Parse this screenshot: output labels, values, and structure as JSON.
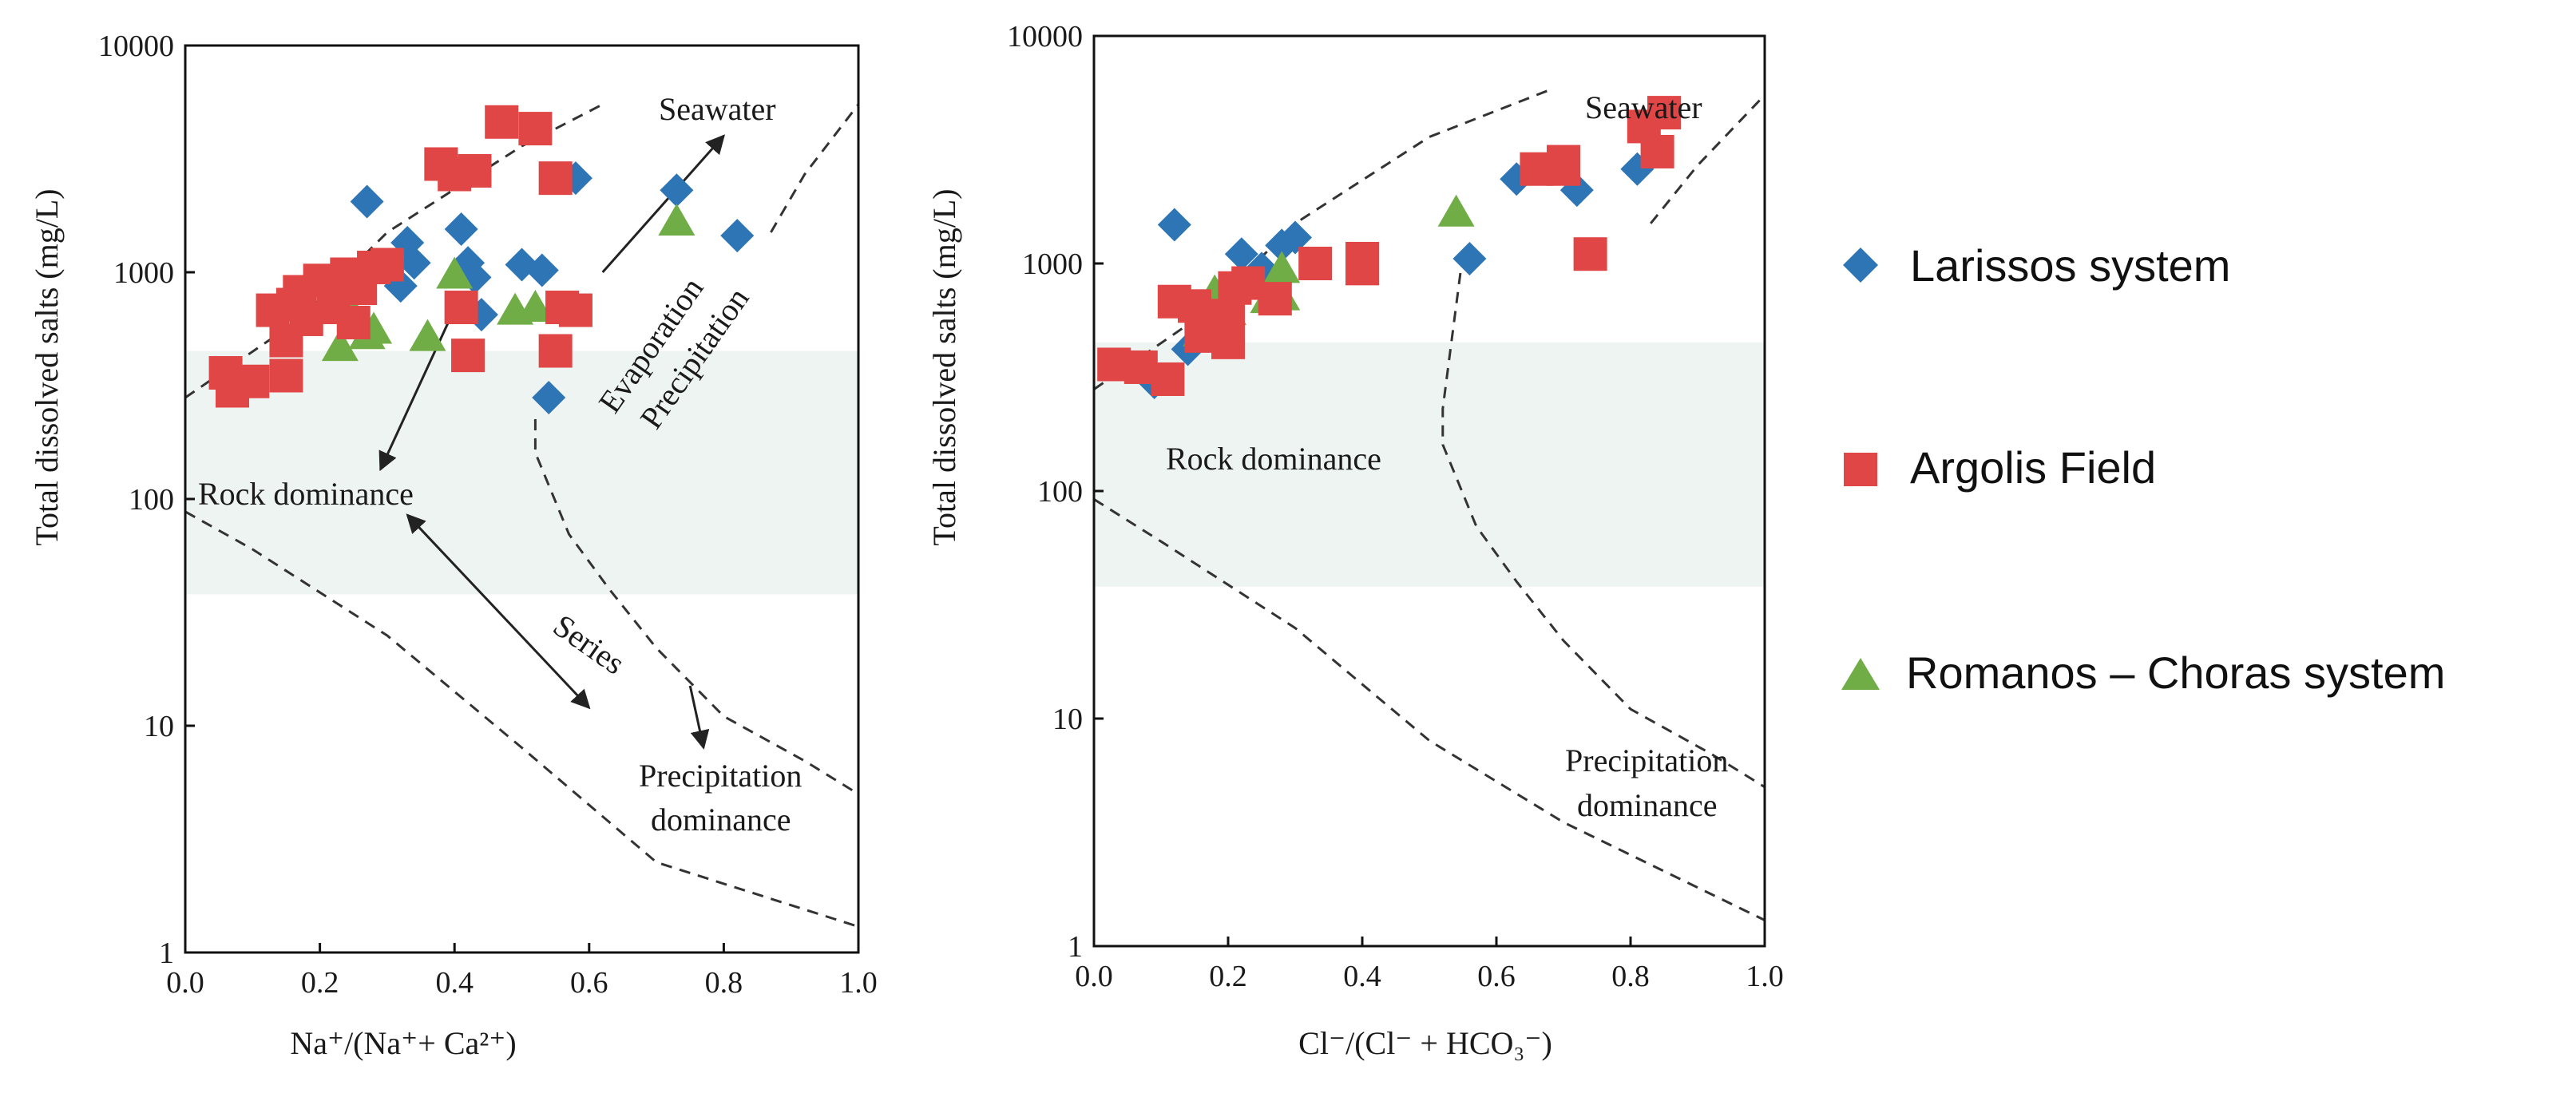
{
  "colors": {
    "larissos": "#2e75b6",
    "argolis": "#e04646",
    "romanos": "#70ad47",
    "band": "#eef4f1",
    "frame": "#111111",
    "dash": "#333333"
  },
  "legend": [
    {
      "series": "larissos",
      "marker": "diamond",
      "label": "Larissos system"
    },
    {
      "series": "argolis",
      "marker": "square",
      "label": "Argolis Field"
    },
    {
      "series": "romanos",
      "marker": "triangle",
      "label": "Romanos – Choras system"
    }
  ],
  "chart_data": [
    {
      "type": "scatter",
      "title": "",
      "xlabel": "Na⁺/(Na⁺+ Ca²⁺)",
      "ylabel": "Total dissolved salts (mg/L)",
      "xlim": [
        0,
        1
      ],
      "ylim": [
        1,
        10000
      ],
      "yscale": "log",
      "grid": false,
      "x_ticks": [
        "0.0",
        "0.2",
        "0.4",
        "0.6",
        "0.8",
        "1.0"
      ],
      "y_ticks": [
        "1",
        "10",
        "100",
        "1000",
        "10000"
      ],
      "annotations": [
        "Seawater",
        "Evaporation",
        "Precipitation",
        "Rock dominance",
        "Series",
        "Precipitation",
        "dominance"
      ],
      "boundaries": {
        "left_upper": [
          [
            0.0,
            280
          ],
          [
            0.17,
            620
          ],
          [
            0.3,
            1500
          ],
          [
            0.5,
            3600
          ],
          [
            0.62,
            5500
          ]
        ],
        "left_lower": [
          [
            0.0,
            88
          ],
          [
            0.1,
            60
          ],
          [
            0.3,
            25
          ],
          [
            0.5,
            8
          ],
          [
            0.7,
            2.5
          ],
          [
            1.0,
            1.3
          ]
        ],
        "right_curve": [
          [
            0.52,
            225
          ],
          [
            0.52,
            160
          ],
          [
            0.57,
            70
          ],
          [
            0.63,
            40
          ],
          [
            0.7,
            22
          ],
          [
            0.8,
            11
          ],
          [
            0.92,
            7
          ],
          [
            1.0,
            5
          ]
        ],
        "right_upper": [
          [
            0.87,
            1500
          ],
          [
            0.92,
            2700
          ],
          [
            1.0,
            5500
          ]
        ]
      },
      "arrows": [
        {
          "from": [
            0.62,
            1000
          ],
          "to": [
            0.8,
            4000
          ]
        },
        {
          "from": [
            0.41,
            800
          ],
          "to": [
            0.29,
            135
          ]
        },
        {
          "from": [
            0.33,
            85
          ],
          "to": [
            0.6,
            12
          ]
        },
        {
          "from": [
            0.75,
            15
          ],
          "to": [
            0.77,
            8
          ]
        }
      ],
      "series": [
        {
          "name": "Larissos system",
          "key": "larissos",
          "points": [
            [
              0.27,
              2050
            ],
            [
              0.33,
              1350
            ],
            [
              0.34,
              1100
            ],
            [
              0.32,
              870
            ],
            [
              0.41,
              1550
            ],
            [
              0.42,
              1100
            ],
            [
              0.43,
              950
            ],
            [
              0.44,
              650
            ],
            [
              0.5,
              1080
            ],
            [
              0.53,
              1020
            ],
            [
              0.58,
              2600
            ],
            [
              0.73,
              2300
            ],
            [
              0.82,
              1450
            ],
            [
              0.54,
              280
            ]
          ]
        },
        {
          "name": "Argolis Field",
          "key": "argolis",
          "points": [
            [
              0.06,
              360
            ],
            [
              0.07,
              300
            ],
            [
              0.1,
              330
            ],
            [
              0.15,
              350
            ],
            [
              0.13,
              680
            ],
            [
              0.16,
              720
            ],
            [
              0.17,
              820
            ],
            [
              0.18,
              620
            ],
            [
              0.15,
              500
            ],
            [
              0.2,
              920
            ],
            [
              0.22,
              700
            ],
            [
              0.24,
              980
            ],
            [
              0.26,
              850
            ],
            [
              0.28,
              1050
            ],
            [
              0.3,
              1080
            ],
            [
              0.25,
              600
            ],
            [
              0.38,
              3000
            ],
            [
              0.4,
              2700
            ],
            [
              0.43,
              2800
            ],
            [
              0.47,
              4600
            ],
            [
              0.52,
              4300
            ],
            [
              0.55,
              2600
            ],
            [
              0.55,
              450
            ],
            [
              0.56,
              700
            ],
            [
              0.58,
              680
            ],
            [
              0.41,
              700
            ],
            [
              0.42,
              430
            ]
          ]
        },
        {
          "name": "Romanos – Choras system",
          "key": "romanos",
          "points": [
            [
              0.23,
              470
            ],
            [
              0.24,
              730
            ],
            [
              0.27,
              530
            ],
            [
              0.28,
              560
            ],
            [
              0.36,
              520
            ],
            [
              0.4,
              980
            ],
            [
              0.49,
              680
            ],
            [
              0.52,
              700
            ],
            [
              0.73,
              1680
            ]
          ]
        }
      ]
    },
    {
      "type": "scatter",
      "title": "",
      "xlabel": "Cl⁻/(Cl⁻ + HCO₃⁻)",
      "ylabel": "Total dissolved salts (mg/L)",
      "xlim": [
        0,
        1
      ],
      "ylim": [
        1,
        10000
      ],
      "yscale": "log",
      "grid": false,
      "x_ticks": [
        "0.0",
        "0.2",
        "0.4",
        "0.6",
        "0.8",
        "1.0"
      ],
      "y_ticks": [
        "1",
        "10",
        "100",
        "1000",
        "10000"
      ],
      "annotations": [
        "Seawater",
        "Rock dominance",
        "Precipitation",
        "dominance"
      ],
      "boundaries": {
        "upper": [
          [
            0.0,
            280
          ],
          [
            0.17,
            620
          ],
          [
            0.3,
            1500
          ],
          [
            0.5,
            3600
          ],
          [
            0.68,
            5800
          ]
        ],
        "lower": [
          [
            0.0,
            92
          ],
          [
            0.1,
            60
          ],
          [
            0.3,
            25
          ],
          [
            0.5,
            8
          ],
          [
            0.7,
            3.5
          ],
          [
            1.0,
            1.3
          ]
        ],
        "right_curve": [
          [
            0.55,
            1100
          ],
          [
            0.52,
            230
          ],
          [
            0.52,
            160
          ],
          [
            0.57,
            70
          ],
          [
            0.63,
            40
          ],
          [
            0.7,
            22
          ],
          [
            0.8,
            11
          ],
          [
            0.92,
            7
          ],
          [
            1.0,
            5
          ]
        ],
        "right_upper": [
          [
            0.83,
            1500
          ],
          [
            0.9,
            2700
          ],
          [
            1.0,
            5500
          ]
        ]
      },
      "series": [
        {
          "name": "Larissos system",
          "key": "larissos",
          "points": [
            [
              0.12,
              1480
            ],
            [
              0.22,
              1100
            ],
            [
              0.28,
              1200
            ],
            [
              0.3,
              1300
            ],
            [
              0.25,
              950
            ],
            [
              0.63,
              2350
            ],
            [
              0.56,
              1050
            ],
            [
              0.72,
              2100
            ],
            [
              0.81,
              2600
            ],
            [
              0.09,
              300
            ],
            [
              0.14,
              420
            ]
          ]
        },
        {
          "name": "Argolis Field",
          "key": "argolis",
          "points": [
            [
              0.03,
              360
            ],
            [
              0.07,
              350
            ],
            [
              0.11,
              310
            ],
            [
              0.12,
              680
            ],
            [
              0.15,
              650
            ],
            [
              0.17,
              590
            ],
            [
              0.2,
              560
            ],
            [
              0.21,
              780
            ],
            [
              0.23,
              820
            ],
            [
              0.27,
              700
            ],
            [
              0.2,
              450
            ],
            [
              0.33,
              1000
            ],
            [
              0.4,
              1050
            ],
            [
              0.4,
              950
            ],
            [
              0.66,
              2600
            ],
            [
              0.7,
              2800
            ],
            [
              0.7,
              2600
            ],
            [
              0.74,
              1100
            ],
            [
              0.82,
              4000
            ],
            [
              0.85,
              4600
            ],
            [
              0.84,
              3100
            ],
            [
              0.16,
              480
            ]
          ]
        },
        {
          "name": "Romanos – Choras system",
          "key": "romanos",
          "points": [
            [
              0.16,
              500
            ],
            [
              0.18,
              560
            ],
            [
              0.18,
              750
            ],
            [
              0.2,
              620
            ],
            [
              0.26,
              700
            ],
            [
              0.28,
              720
            ],
            [
              0.28,
              950
            ],
            [
              0.54,
              1680
            ]
          ]
        }
      ]
    }
  ]
}
